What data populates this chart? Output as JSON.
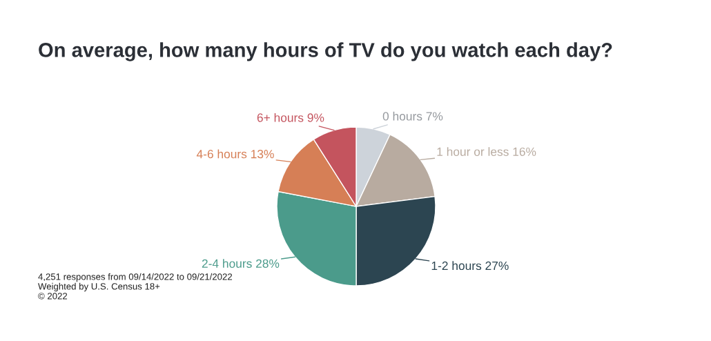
{
  "chart_data": {
    "type": "pie",
    "title": "On average, how many hours of TV do you watch each day?",
    "categories": [
      "0 hours",
      "1 hour or less",
      "1-2 hours",
      "2-4 hours",
      "4-6 hours",
      "6+ hours"
    ],
    "values": [
      7,
      16,
      27,
      28,
      13,
      9
    ],
    "value_labels": [
      "7%",
      "16%",
      "27%",
      "28%",
      "13%",
      "9%"
    ],
    "colors": [
      "#cdd3da",
      "#b8aba0",
      "#2c4551",
      "#4b9b8b",
      "#d67f56",
      "#c4545e"
    ],
    "legend": false,
    "annotations": [
      "4,251 responses from 09/14/2022 to 09/21/2022",
      "Weighted by U.S. Census 18+",
      "© 2022"
    ]
  }
}
